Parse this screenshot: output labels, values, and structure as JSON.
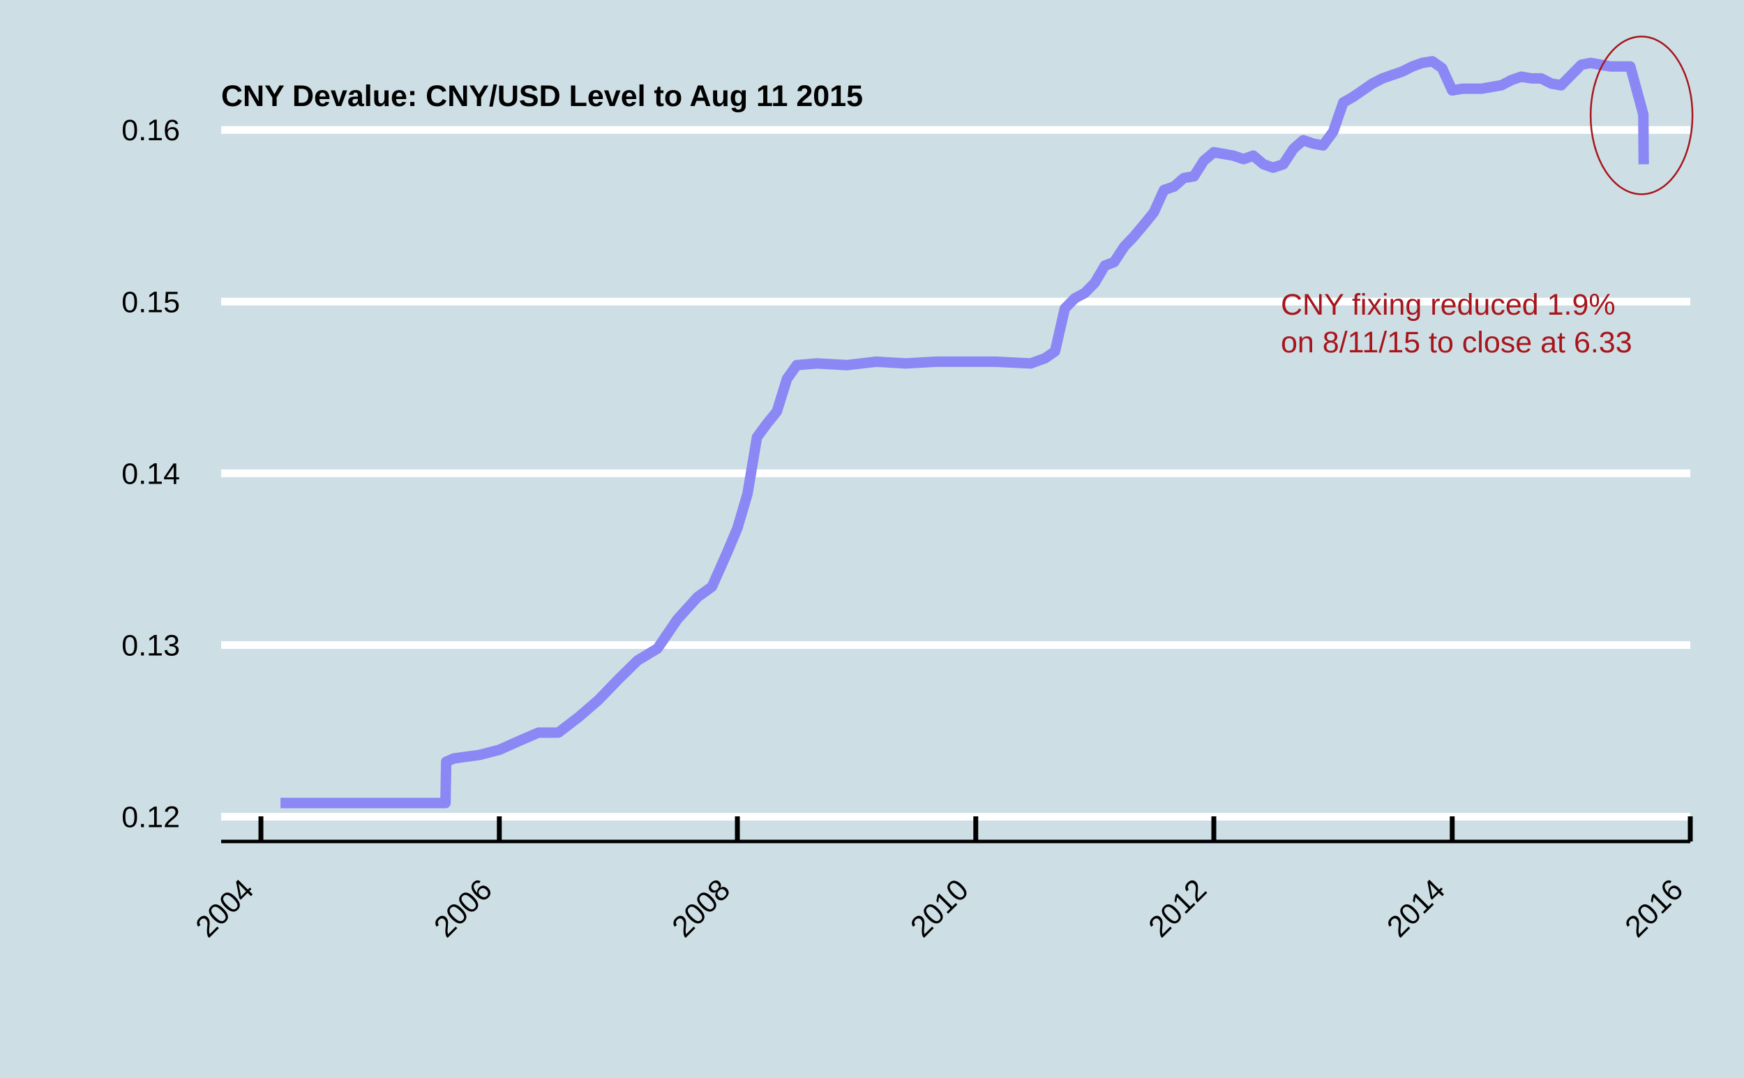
{
  "colors": {
    "background": "#cddfe5",
    "gridline": "#ffffff",
    "series_line": "#8b87f5",
    "axis": "#000000",
    "annotation": "#a8151c"
  },
  "chart_data": {
    "type": "line",
    "title": "CNY Devalue: CNY/USD Level to Aug 11 2015",
    "xlabel": "",
    "ylabel": "",
    "xlim": [
      "2003-09-01",
      "2016-01-01"
    ],
    "ylim": [
      0.1186,
      0.1633
    ],
    "x_ticks": [
      "2004",
      "2006",
      "2008",
      "2010",
      "2012",
      "2014",
      "2016"
    ],
    "y_ticks": [
      "0.12",
      "0.13",
      "0.14",
      "0.15",
      "0.16"
    ],
    "grid": "horizontal",
    "legend": "none",
    "series": [
      {
        "x": [
          "2004-03-01",
          "2005-07-20",
          "2005-07-22",
          "2005-08-15",
          "2005-11-01",
          "2006-01-01",
          "2006-03-01",
          "2006-05-01",
          "2006-07-01",
          "2006-09-01",
          "2006-11-01",
          "2007-01-01",
          "2007-03-01",
          "2007-05-01",
          "2007-07-01",
          "2007-09-01",
          "2007-10-15",
          "2007-12-01",
          "2008-01-01",
          "2008-02-01",
          "2008-03-01",
          "2008-04-01",
          "2008-05-01",
          "2008-06-01",
          "2008-07-01",
          "2008-09-01",
          "2008-12-01",
          "2009-03-01",
          "2009-06-01",
          "2009-09-01",
          "2009-12-01",
          "2010-03-01",
          "2010-06-18",
          "2010-08-01",
          "2010-09-01",
          "2010-10-01",
          "2010-11-01",
          "2010-12-01",
          "2011-01-01",
          "2011-02-01",
          "2011-03-01",
          "2011-04-01",
          "2011-05-01",
          "2011-06-01",
          "2011-07-01",
          "2011-08-01",
          "2011-09-01",
          "2011-10-01",
          "2011-11-01",
          "2011-12-01",
          "2012-01-01",
          "2012-02-01",
          "2012-03-01",
          "2012-04-01",
          "2012-05-01",
          "2012-06-01",
          "2012-07-01",
          "2012-08-01",
          "2012-09-01",
          "2012-10-01",
          "2012-11-01",
          "2012-12-01",
          "2013-01-01",
          "2013-02-01",
          "2013-03-01",
          "2013-04-01",
          "2013-05-01",
          "2013-06-01",
          "2013-07-01",
          "2013-08-01",
          "2013-09-01",
          "2013-10-01",
          "2013-11-01",
          "2013-12-01",
          "2014-01-01",
          "2014-02-01",
          "2014-03-01",
          "2014-04-01",
          "2014-05-01",
          "2014-06-01",
          "2014-07-01",
          "2014-08-01",
          "2014-09-01",
          "2014-10-01",
          "2014-11-01",
          "2014-12-01",
          "2015-01-01",
          "2015-02-01",
          "2015-03-01",
          "2015-04-01",
          "2015-05-01",
          "2015-06-01",
          "2015-07-01",
          "2015-08-10",
          "2015-08-11"
        ],
        "values": [
          0.1208,
          0.1208,
          0.1232,
          0.1234,
          0.1236,
          0.1239,
          0.1244,
          0.1249,
          0.1249,
          0.1258,
          0.1268,
          0.128,
          0.1291,
          0.1298,
          0.1315,
          0.1328,
          0.1334,
          0.1354,
          0.1368,
          0.1388,
          0.1421,
          0.1429,
          0.1436,
          0.1455,
          0.1463,
          0.1464,
          0.1463,
          0.1465,
          0.1464,
          0.1465,
          0.1465,
          0.1465,
          0.1464,
          0.1467,
          0.1471,
          0.1496,
          0.1502,
          0.1505,
          0.1511,
          0.1521,
          0.1523,
          0.1532,
          0.1538,
          0.1545,
          0.1552,
          0.1565,
          0.1567,
          0.1572,
          0.1573,
          0.1582,
          0.1587,
          0.1586,
          0.1585,
          0.1583,
          0.1585,
          0.158,
          0.1578,
          0.158,
          0.1589,
          0.1594,
          0.1592,
          0.1591,
          0.1599,
          0.1616,
          0.1619,
          0.1623,
          0.1627,
          0.163,
          0.1632,
          0.1634,
          0.1637,
          0.1639,
          0.164,
          0.1636,
          0.1623,
          0.1624,
          0.1624,
          0.1624,
          0.1625,
          0.1626,
          0.1629,
          0.1631,
          0.163,
          0.163,
          0.1627,
          0.1626,
          0.1632,
          0.1638,
          0.1639,
          0.1638,
          0.1637,
          0.1637,
          0.1637,
          0.1609,
          0.158
        ]
      }
    ],
    "annotation": {
      "lines": [
        "CNY fixing reduced 1.9%",
        "on 8/11/15 to close at 6.33"
      ],
      "target": "2015-08-11"
    }
  }
}
